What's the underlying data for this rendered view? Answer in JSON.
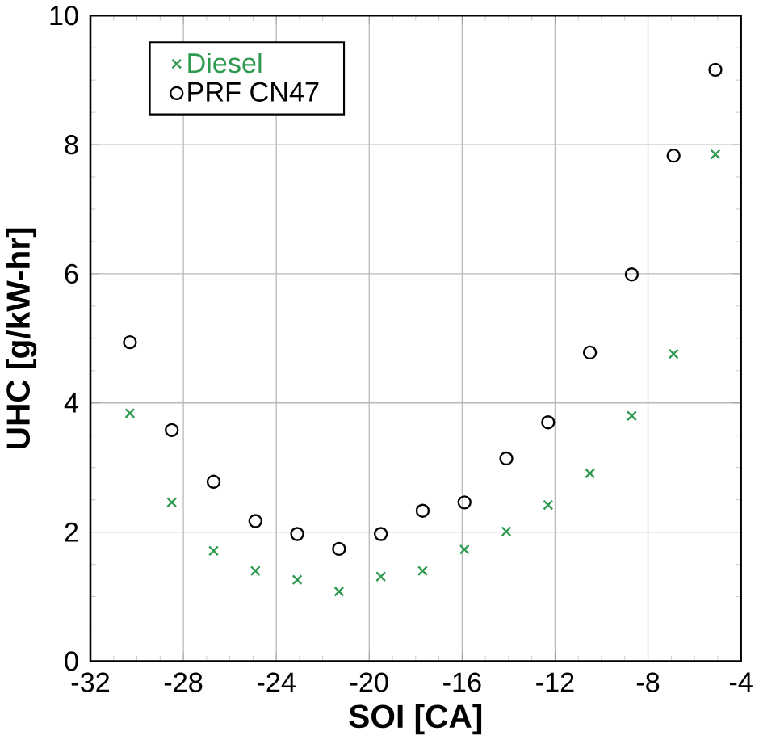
{
  "chart_data": {
    "type": "scatter",
    "xlabel": "SOI [CA]",
    "ylabel": "UHC [g/kW-hr]",
    "x": [
      -30.3,
      -28.5,
      -26.7,
      -24.9,
      -23.1,
      -21.3,
      -19.5,
      -17.7,
      -15.9,
      -14.1,
      -12.3,
      -10.5,
      -8.7,
      -6.9,
      -5.1
    ],
    "series": [
      {
        "name": "Diesel",
        "color": "#2e9a4f",
        "marker": "cross",
        "values": [
          3.84,
          2.46,
          1.71,
          1.4,
          1.26,
          1.08,
          1.31,
          1.4,
          1.73,
          2.01,
          2.42,
          2.91,
          3.8,
          4.76,
          7.85
        ]
      },
      {
        "name": "PRF CN47",
        "color": "#000000",
        "marker": "circle",
        "values": [
          4.94,
          3.58,
          2.78,
          2.17,
          1.97,
          1.74,
          1.97,
          2.33,
          2.46,
          3.14,
          3.7,
          4.78,
          5.99,
          7.83,
          9.16
        ]
      }
    ],
    "xlim": [
      -32,
      -4
    ],
    "ylim": [
      0,
      10
    ],
    "xticks": [
      -32,
      -28,
      -24,
      -20,
      -16,
      -12,
      -8,
      -4
    ],
    "yticks": [
      0,
      2,
      4,
      6,
      8,
      10
    ],
    "grid": true,
    "legend": "top left"
  }
}
